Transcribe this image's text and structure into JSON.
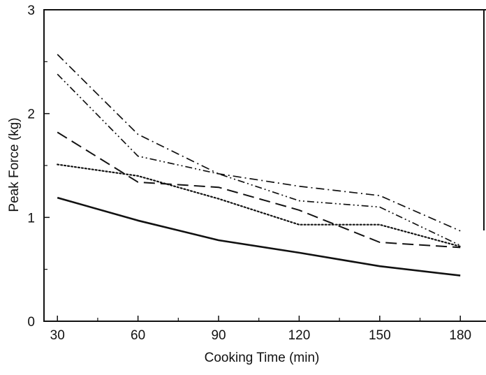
{
  "chart_data": {
    "type": "line",
    "xlabel": "Cooking Time (min)",
    "ylabel": "Peak Force (kg)",
    "x_ticks": [
      30,
      60,
      90,
      120,
      150,
      180
    ],
    "y_ticks": [
      0,
      1,
      2,
      3
    ],
    "xlim": [
      25,
      188
    ],
    "ylim": [
      0,
      3
    ],
    "grid": false,
    "legend": "none",
    "series": [
      {
        "style": "solid",
        "x": [
          30,
          60,
          90,
          120,
          150,
          180
        ],
        "y": [
          1.19,
          0.97,
          0.78,
          0.66,
          0.53,
          0.44
        ]
      },
      {
        "style": "dotted",
        "x": [
          30,
          60,
          90,
          120,
          150,
          180
        ],
        "y": [
          1.51,
          1.4,
          1.18,
          0.93,
          0.93,
          0.72
        ]
      },
      {
        "style": "dashed",
        "x": [
          30,
          60,
          90,
          120,
          150,
          180
        ],
        "y": [
          1.82,
          1.34,
          1.29,
          1.07,
          0.76,
          0.71
        ]
      },
      {
        "style": "dash-dot-dot",
        "x": [
          30,
          60,
          90,
          120,
          150,
          180
        ],
        "y": [
          2.38,
          1.59,
          1.42,
          1.16,
          1.1,
          0.73
        ]
      },
      {
        "style": "dash-dot",
        "x": [
          30,
          60,
          90,
          120,
          150,
          180
        ],
        "y": [
          2.57,
          1.8,
          1.42,
          1.3,
          1.21,
          0.87
        ]
      }
    ]
  }
}
